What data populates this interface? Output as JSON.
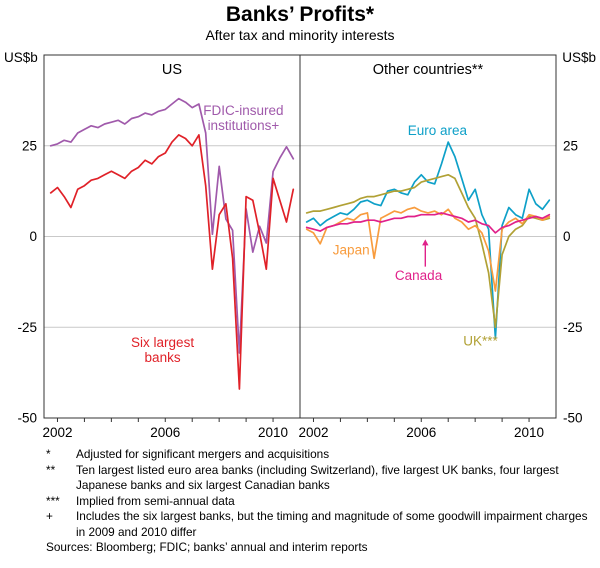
{
  "header": {
    "title": "Banks’ Profits*",
    "subtitle": "After tax and minority interests"
  },
  "chart_data": {
    "type": "line",
    "unit_label": "US$b",
    "ylim": [
      -50,
      50
    ],
    "y_ticks": [
      25,
      0,
      -25,
      -50
    ],
    "grid_values": [
      25,
      0,
      -25
    ],
    "xlim": [
      2001.5,
      2011
    ],
    "x_ticks_labeled": [
      2002,
      2006,
      2010
    ],
    "x": [
      2001.75,
      2002,
      2002.25,
      2002.5,
      2002.75,
      2003,
      2003.25,
      2003.5,
      2003.75,
      2004,
      2004.25,
      2004.5,
      2004.75,
      2005,
      2005.25,
      2005.5,
      2005.75,
      2006,
      2006.25,
      2006.5,
      2006.75,
      2007,
      2007.25,
      2007.5,
      2007.75,
      2008,
      2008.25,
      2008.5,
      2008.75,
      2009,
      2009.25,
      2009.5,
      2009.75,
      2010,
      2010.25,
      2010.5,
      2010.75
    ],
    "panels": [
      {
        "title": "US",
        "series": [
          {
            "name": "FDIC-insured institutions+",
            "color": "#a05aab",
            "values": [
              25,
              25.5,
              26.5,
              26,
              28.5,
              29.5,
              30.5,
              30,
              31,
              31.5,
              32,
              31,
              32.5,
              33,
              34,
              33.5,
              34.5,
              35,
              36.5,
              38,
              37,
              35.5,
              36.5,
              28.5,
              0.6,
              19.3,
              4.8,
              1.7,
              -32.1,
              7.6,
              -4.3,
              2.8,
              -1.8,
              17.9,
              21.6,
              24.7,
              21.4
            ]
          },
          {
            "name": "Six largest banks",
            "color": "#e02128",
            "values": [
              12,
              13.5,
              11,
              8,
              13,
              14,
              15.5,
              16,
              17,
              18,
              17,
              16,
              18,
              19,
              21,
              20,
              22,
              23,
              26,
              28,
              27,
              25,
              28,
              14,
              -9,
              6,
              9,
              -6,
              -42,
              11,
              10,
              1,
              -9,
              16,
              10,
              4,
              13
            ]
          }
        ],
        "annotations": [
          {
            "lines": [
              "FDIC-insured",
              "institutions+"
            ],
            "color": "#a05aab",
            "x": 2008.9,
            "y": 33.5
          },
          {
            "lines": [
              "Six largest",
              "banks"
            ],
            "color": "#e02128",
            "x": 2005.9,
            "y": -30.5
          }
        ]
      },
      {
        "title": "Other countries**",
        "series": [
          {
            "name": "Euro area",
            "color": "#0ea0c8",
            "values": [
              4,
              5,
              3,
              4.5,
              5.5,
              6.5,
              6,
              7.5,
              9.5,
              10,
              9,
              8.5,
              12.5,
              13,
              12,
              11.5,
              15,
              17,
              15,
              14.5,
              20,
              26,
              22,
              16,
              10,
              13,
              6,
              2,
              -28,
              3,
              8,
              6,
              5,
              13,
              9,
              7.5,
              10
            ]
          },
          {
            "name": "UK***",
            "color": "#b1a135",
            "values": [
              6.5,
              7,
              7,
              7.5,
              8,
              8.5,
              9,
              9.5,
              10.5,
              11,
              11,
              11.5,
              12,
              12.5,
              12.5,
              13,
              13.5,
              15,
              15.5,
              16,
              16.5,
              17,
              16,
              12,
              8,
              5,
              -2,
              -10,
              -25,
              -5,
              0,
              2,
              3,
              5.5,
              5,
              4.5,
              5
            ]
          },
          {
            "name": "Japan",
            "color": "#f89c3e",
            "values": [
              2,
              1,
              -2,
              2.5,
              3,
              4,
              5,
              4.5,
              6,
              6.5,
              -6,
              5,
              6,
              7,
              6.5,
              7.5,
              8,
              7,
              6.5,
              7,
              6,
              7.5,
              5,
              4,
              2,
              3,
              1,
              -4,
              -15,
              2,
              4,
              5,
              3.5,
              6,
              5.5,
              4.5,
              5.5
            ]
          },
          {
            "name": "Canada",
            "color": "#e0218a",
            "values": [
              2.5,
              2,
              1.5,
              2.5,
              3,
              3.5,
              3.5,
              4,
              4,
              4.5,
              4.5,
              4,
              4.5,
              5,
              5,
              5.5,
              5.5,
              6,
              6,
              6,
              6.5,
              6,
              5.5,
              5,
              4,
              4.5,
              3.5,
              3,
              1,
              2.5,
              3,
              4,
              4.5,
              5,
              5.5,
              5,
              6
            ]
          }
        ],
        "annotations": [
          {
            "lines": [
              "Euro area"
            ],
            "color": "#0ea0c8",
            "x": 2006.6,
            "y": 28
          },
          {
            "lines": [
              "Japan"
            ],
            "color": "#f89c3e",
            "x": 2003.4,
            "y": -5
          },
          {
            "lines": [
              "Canada"
            ],
            "color": "#e0218a",
            "x": 2005.9,
            "y": -12
          },
          {
            "type": "arrow",
            "color": "#e0218a",
            "x": 2006.15,
            "y_from": -8.3,
            "y_to": -0.8
          },
          {
            "lines": [
              "UK***"
            ],
            "color": "#b1a135",
            "x": 2008.2,
            "y": -30
          }
        ]
      }
    ]
  },
  "footnotes": [
    {
      "marker": "*",
      "text": "Adjusted for significant mergers and acquisitions"
    },
    {
      "marker": "**",
      "text": "Ten largest listed euro area banks (including Switzerland), five largest UK banks, four largest Japanese banks and six largest Canadian banks"
    },
    {
      "marker": "***",
      "text": "Implied from semi-annual data"
    },
    {
      "marker": "+",
      "text": "Includes the six largest banks, but the timing and magnitude of some goodwill impairment charges in 2009 and 2010 differ"
    }
  ],
  "sources_label": "Sources:",
  "sources_text": "Bloomberg; FDIC; banks’ annual and interim reports"
}
